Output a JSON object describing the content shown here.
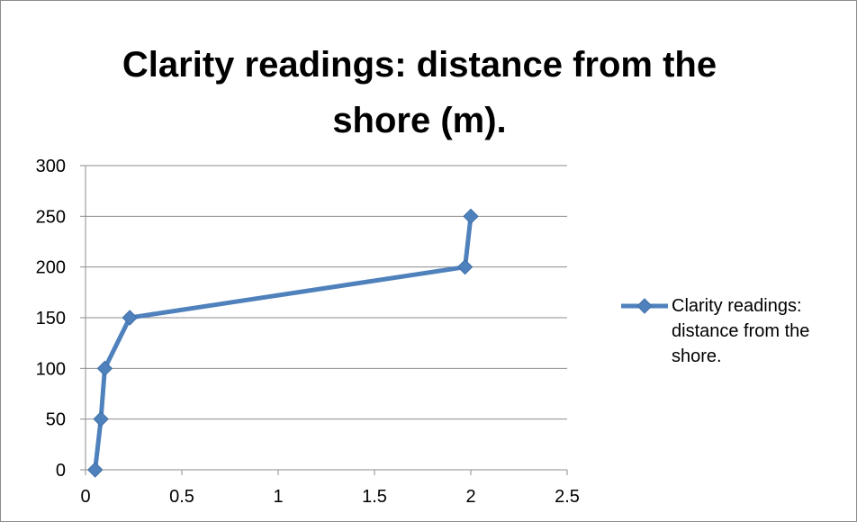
{
  "chart_data": {
    "type": "line",
    "title": "Clarity readings: distance from the shore (m).",
    "xlabel": "",
    "ylabel": "",
    "xlim": [
      0,
      2.5
    ],
    "ylim": [
      0,
      300
    ],
    "x_ticks": [
      "0",
      "0.5",
      "1",
      "1.5",
      "2",
      "2.5"
    ],
    "y_ticks": [
      "0",
      "50",
      "100",
      "150",
      "200",
      "250",
      "300"
    ],
    "grid": "horizontal",
    "legend": "right",
    "series": [
      {
        "name": "Clarity readings: distance from the shore.",
        "color": "#4f81bd",
        "marker": "diamond",
        "points": [
          {
            "x": 0.05,
            "y": 0
          },
          {
            "x": 0.08,
            "y": 50
          },
          {
            "x": 0.1,
            "y": 100
          },
          {
            "x": 0.23,
            "y": 150
          },
          {
            "x": 1.97,
            "y": 200
          },
          {
            "x": 2.0,
            "y": 250
          }
        ]
      }
    ]
  }
}
